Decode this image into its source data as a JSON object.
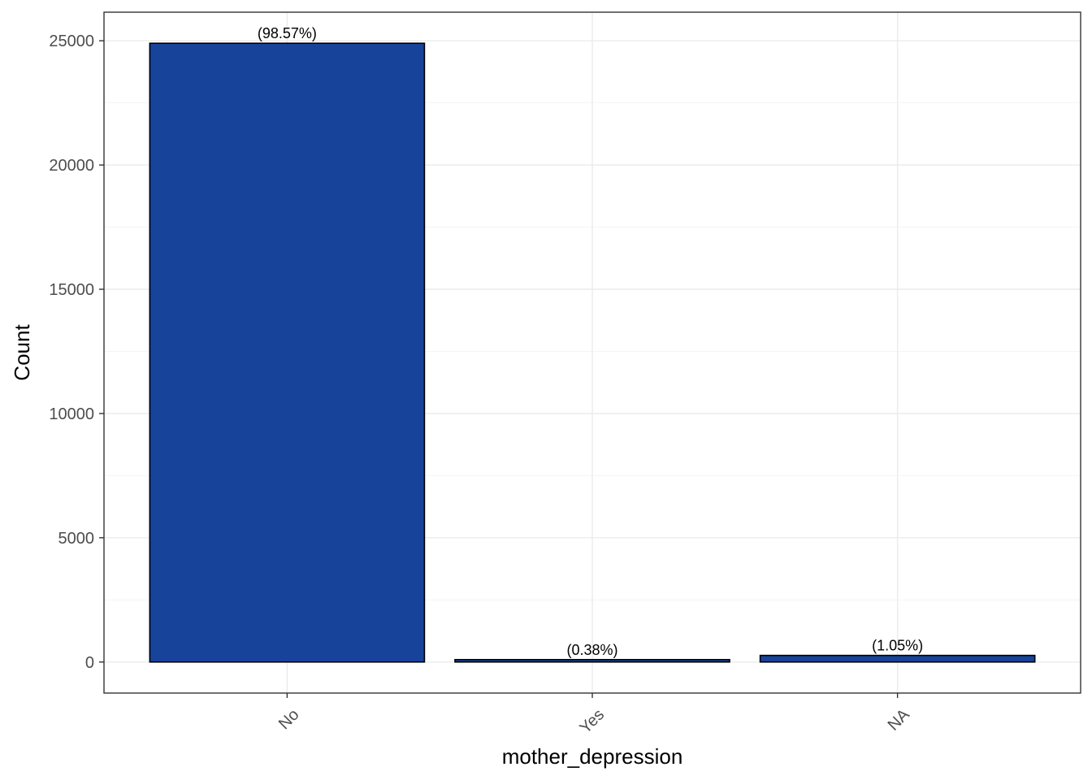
{
  "chart_data": {
    "type": "bar",
    "xlabel": "mother_depression",
    "ylabel": "Count",
    "categories": [
      "No",
      "Yes",
      "NA"
    ],
    "values": [
      24900,
      96,
      265
    ],
    "labels": [
      "(98.57%)",
      "(0.38%)",
      "(1.05%)"
    ],
    "ylim": [
      -1250,
      26150
    ],
    "yticks": [
      0,
      5000,
      10000,
      15000,
      20000,
      25000
    ],
    "grid": true,
    "legend": "none",
    "bar_color": "#17439a",
    "bar_outline": "#000000"
  }
}
